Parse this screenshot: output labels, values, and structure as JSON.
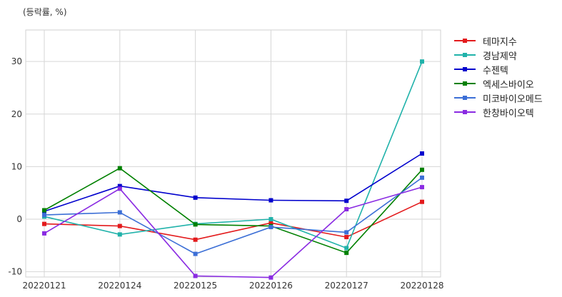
{
  "chart_data": {
    "type": "line",
    "unit_label": "(등락률, %)",
    "xlabel": "",
    "ylabel": "",
    "categories": [
      "20220121",
      "20220124",
      "20220125",
      "20220126",
      "20220127",
      "20220128"
    ],
    "ylim": [
      -11,
      36
    ],
    "yticks": [
      -10,
      0,
      10,
      20,
      30
    ],
    "grid": true,
    "legend_position": "right",
    "series": [
      {
        "name": "테마지수",
        "color": "#e31a1c",
        "values": [
          -0.9,
          -1.3,
          -3.9,
          -0.7,
          -3.4,
          3.3
        ]
      },
      {
        "name": "경남제약",
        "color": "#20b2aa",
        "values": [
          0.5,
          -2.9,
          -0.9,
          0.0,
          -5.5,
          30.0
        ]
      },
      {
        "name": "수젠텍",
        "color": "#0000cd",
        "values": [
          1.5,
          6.3,
          4.1,
          3.6,
          3.5,
          12.5
        ]
      },
      {
        "name": "엑세스바이오",
        "color": "#008000",
        "values": [
          1.7,
          9.7,
          -1.0,
          -1.3,
          -6.4,
          9.4
        ]
      },
      {
        "name": "미코바이오메드",
        "color": "#3c6fd6",
        "values": [
          0.8,
          1.3,
          -6.6,
          -1.5,
          -2.5,
          7.9
        ]
      },
      {
        "name": "한창바이오텍",
        "color": "#8a2be2",
        "values": [
          -2.7,
          5.8,
          -10.8,
          -11.1,
          1.9,
          6.1
        ]
      }
    ]
  }
}
